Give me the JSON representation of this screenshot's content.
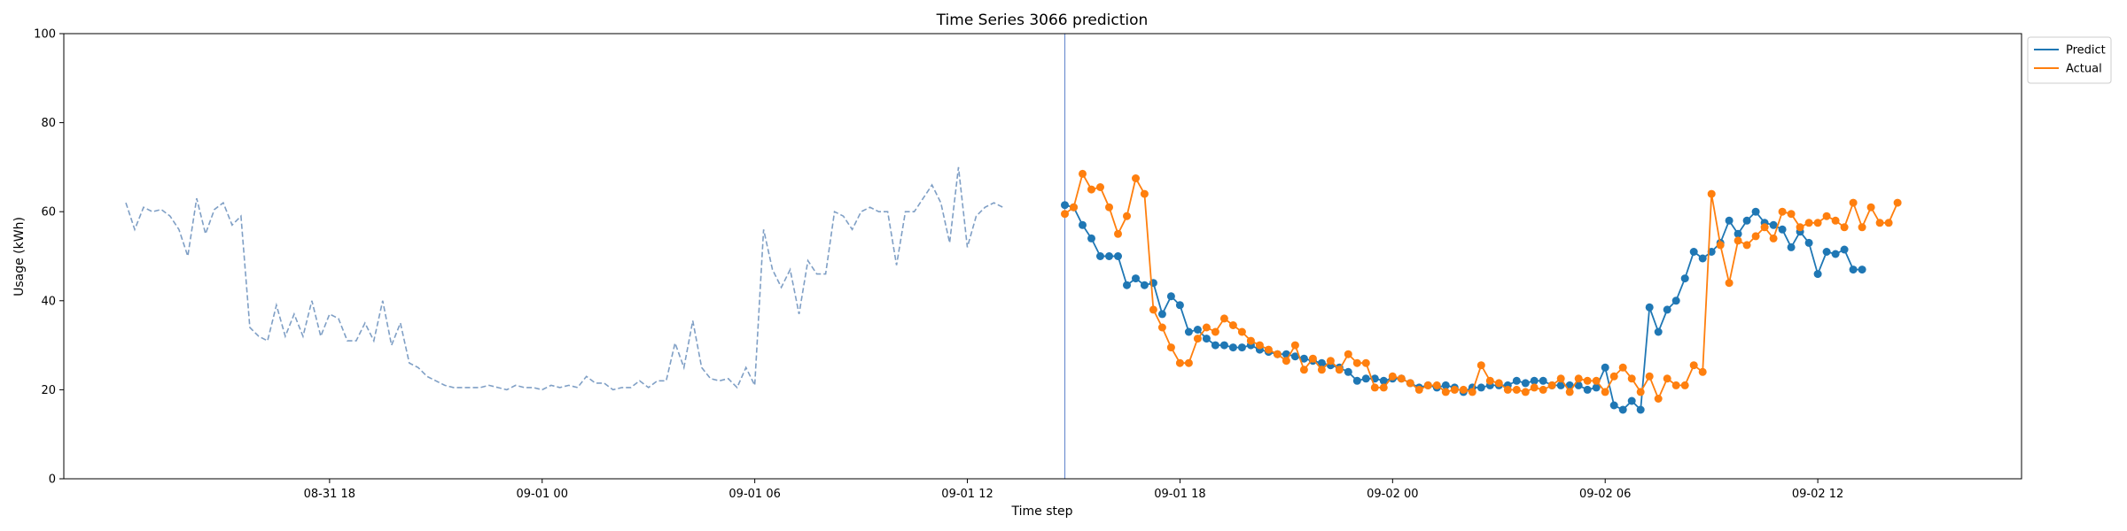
{
  "chart_data": {
    "type": "line",
    "title": "Time Series 3066 prediction",
    "xlabel": "Time step",
    "ylabel": "Usage (kWh)",
    "ylim": [
      0,
      100
    ],
    "yticks": [
      0,
      20,
      40,
      60,
      80,
      100
    ],
    "x_axis": {
      "kind": "datetime",
      "start": "2024-08-31T10:30",
      "end": "2024-09-02T17:45",
      "step_minutes": 15
    },
    "xticks": [
      {
        "t": "2024-08-31T18:00",
        "label": "08-31 18"
      },
      {
        "t": "2024-09-01T00:00",
        "label": "09-01 00"
      },
      {
        "t": "2024-09-01T06:00",
        "label": "09-01 06"
      },
      {
        "t": "2024-09-01T12:00",
        "label": "09-01 12"
      },
      {
        "t": "2024-09-01T18:00",
        "label": "09-01 18"
      },
      {
        "t": "2024-09-02T00:00",
        "label": "09-02 00"
      },
      {
        "t": "2024-09-02T06:00",
        "label": "09-02 06"
      },
      {
        "t": "2024-09-02T12:00",
        "label": "09-02 12"
      }
    ],
    "forecast_start": "2024-09-01T14:45",
    "grid": false,
    "legend_position": "outside-top-right",
    "series": [
      {
        "name": "",
        "style": "dashed",
        "color": "#7f9fc5",
        "start": "2024-08-31T12:15",
        "step_minutes": 15,
        "values": [
          62,
          56,
          61,
          60,
          60.5,
          59,
          56,
          50,
          63,
          55,
          60.5,
          62,
          57,
          59,
          34,
          32,
          31,
          39,
          32,
          37,
          32,
          40,
          32,
          37,
          36,
          31,
          31,
          35,
          31,
          40,
          30,
          35,
          26,
          25,
          23,
          22,
          21,
          20.5,
          20.5,
          20.5,
          20.5,
          21,
          20.5,
          20,
          21,
          20.5,
          20.5,
          20,
          21,
          20.5,
          21,
          20.5,
          23,
          21.5,
          21.5,
          20,
          20.5,
          20.5,
          22,
          20.5,
          22,
          22,
          30.5,
          25,
          35.5,
          25,
          22.5,
          22,
          22.5,
          20.5,
          25,
          21,
          56,
          47,
          43,
          47,
          37,
          49,
          46,
          46,
          60,
          59,
          56,
          60,
          61,
          60,
          60,
          48,
          60,
          60,
          63,
          66,
          62,
          53,
          70,
          52,
          59,
          61,
          62,
          61
        ]
      },
      {
        "name": "Predict",
        "style": "solid-markers",
        "color": "#1f77b4",
        "start": "2024-09-01T14:45",
        "step_minutes": 15,
        "values": [
          61.5,
          61,
          57,
          54,
          50,
          50,
          50,
          43.5,
          45,
          43.5,
          44,
          37,
          41,
          39,
          33,
          33.5,
          31.5,
          30,
          30,
          29.5,
          29.5,
          30,
          29,
          28.5,
          28,
          28,
          27.5,
          27,
          26.5,
          26,
          25.5,
          25,
          24,
          22,
          22.5,
          22.5,
          22,
          22.5,
          22.5,
          21.5,
          20.5,
          21,
          20.5,
          21,
          20.5,
          19.5,
          20.5,
          20.5,
          21,
          21,
          21,
          22,
          21.5,
          22,
          22,
          21,
          21,
          21,
          21,
          20,
          20.5,
          25,
          16.5,
          15.5,
          17.5,
          15.5,
          38.5,
          33,
          38,
          40,
          45,
          51,
          49.5,
          51,
          53,
          58,
          55,
          58,
          60,
          57.5,
          57,
          56,
          52,
          55.5,
          53,
          46,
          51,
          50.5,
          51.5,
          47,
          47
        ]
      },
      {
        "name": "Actual",
        "style": "solid-markers",
        "color": "#ff7f0e",
        "start": "2024-09-01T14:45",
        "step_minutes": 15,
        "values": [
          59.5,
          61,
          68.5,
          65,
          65.5,
          61,
          55,
          59,
          67.5,
          64,
          38,
          34,
          29.5,
          26,
          26,
          31.5,
          34,
          33,
          36,
          34.5,
          33,
          31,
          30,
          29,
          28,
          26.5,
          30,
          24.5,
          27,
          24.5,
          26.5,
          24.5,
          28,
          26,
          26,
          20.5,
          20.5,
          23,
          22.5,
          21.5,
          20,
          21,
          21,
          19.5,
          20,
          20,
          19.5,
          25.5,
          22,
          21.5,
          20,
          20,
          19.5,
          20.5,
          20,
          21,
          22.5,
          19.5,
          22.5,
          22,
          22,
          19.5,
          23,
          25,
          22.5,
          19.5,
          23,
          18,
          22.5,
          21,
          21,
          25.5,
          24,
          64,
          52.5,
          44,
          53.5,
          52.5,
          54.5,
          56.5,
          54,
          60,
          59.5,
          56.5,
          57.5,
          57.5,
          59,
          58,
          56.5,
          62,
          56.5,
          61,
          57.5,
          57.5,
          62
        ]
      }
    ]
  }
}
